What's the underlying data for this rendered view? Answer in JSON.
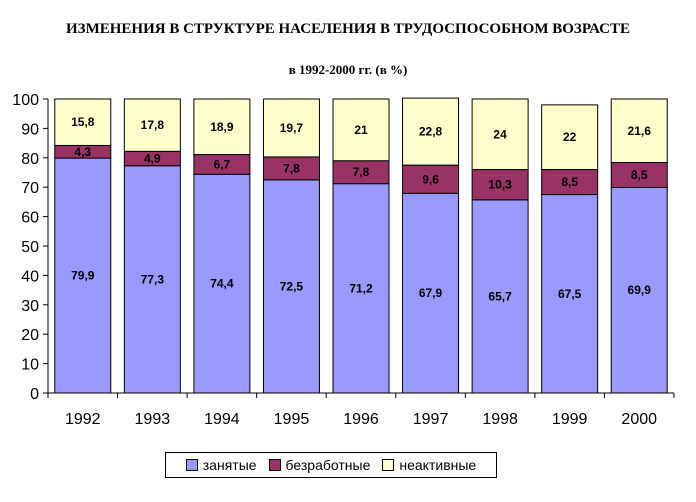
{
  "chart_data": {
    "type": "bar",
    "stacked": true,
    "title": "ИЗМЕНЕНИЯ В СТРУКТУРЕ НАСЕЛЕНИЯ В ТРУДОСПОСОБНОМ ВОЗРАСТЕ",
    "subtitle": "в 1992-2000 гг. (в %)",
    "categories": [
      "1992",
      "1993",
      "1994",
      "1995",
      "1996",
      "1997",
      "1998",
      "1999",
      "2000"
    ],
    "series": [
      {
        "name": "занятые",
        "color": "#9999ff",
        "values": [
          79.9,
          77.3,
          74.4,
          72.5,
          71.2,
          67.9,
          65.7,
          67.5,
          69.9
        ],
        "labels": [
          "79,9",
          "77,3",
          "74,4",
          "72,5",
          "71,2",
          "67,9",
          "65,7",
          "67,5",
          "69,9"
        ]
      },
      {
        "name": "безработные",
        "color": "#993366",
        "values": [
          4.3,
          4.9,
          6.7,
          7.8,
          7.8,
          9.6,
          10.3,
          8.5,
          8.5
        ],
        "labels": [
          "4,3",
          "4,9",
          "6,7",
          "7,8",
          "7,8",
          "9,6",
          "10,3",
          "8,5",
          "8,5"
        ]
      },
      {
        "name": "неактивные",
        "color": "#ffffcc",
        "values": [
          15.8,
          17.8,
          18.9,
          19.7,
          21,
          22.8,
          24,
          22,
          21.6
        ],
        "labels": [
          "15,8",
          "17,8",
          "18,9",
          "19,7",
          "21",
          "22,8",
          "24",
          "22",
          "21,6"
        ]
      }
    ],
    "ylim": [
      0,
      100
    ],
    "yticks": [
      "0",
      "10",
      "20",
      "30",
      "40",
      "50",
      "60",
      "70",
      "80",
      "90",
      "100"
    ],
    "grid": false,
    "legend_position": "bottom"
  }
}
